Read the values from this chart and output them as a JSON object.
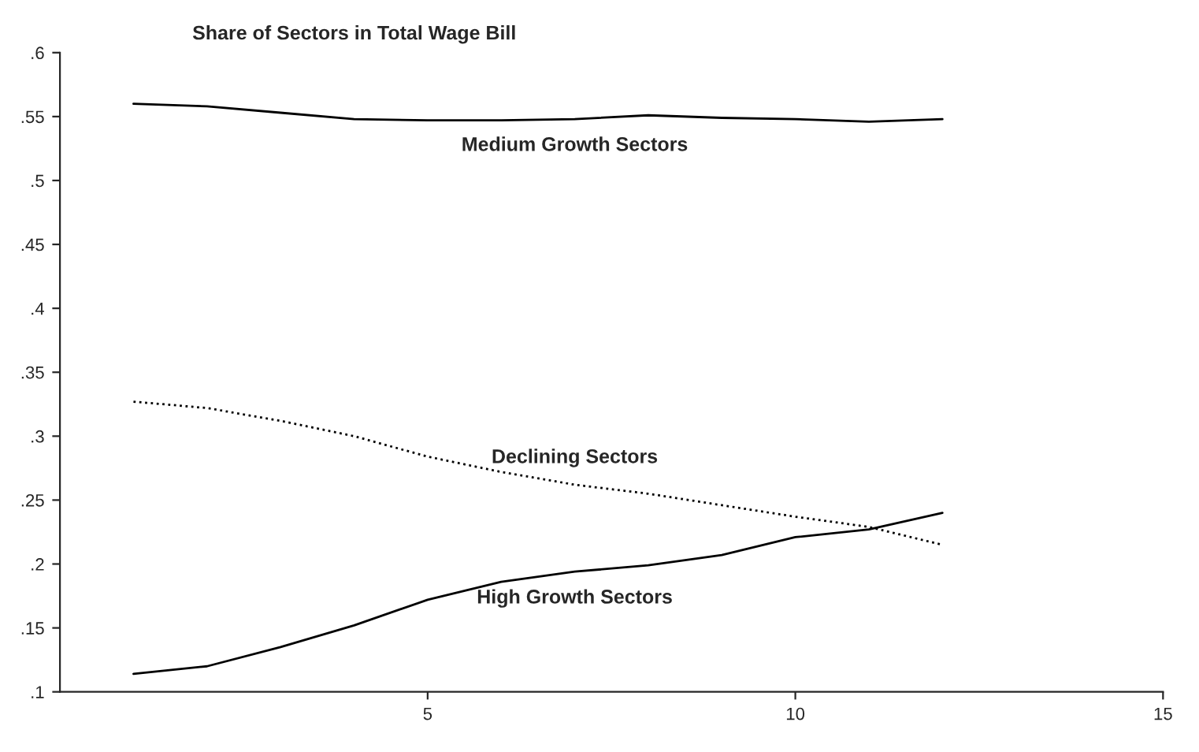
{
  "chart_data": {
    "type": "line",
    "title": "Share of Sectors in Total Wage Bill",
    "x": [
      1,
      2,
      3,
      4,
      5,
      6,
      7,
      8,
      9,
      10,
      11,
      12
    ],
    "series": [
      {
        "name": "Medium Growth Sectors",
        "color": "#000000",
        "line_style": "solid",
        "values": [
          0.56,
          0.558,
          0.553,
          0.548,
          0.547,
          0.547,
          0.548,
          0.551,
          0.549,
          0.548,
          0.546,
          0.548
        ]
      },
      {
        "name": "Declining Sectors",
        "color": "#000000",
        "line_style": "dotted",
        "values": [
          0.327,
          0.322,
          0.312,
          0.3,
          0.284,
          0.272,
          0.262,
          0.255,
          0.246,
          0.237,
          0.229,
          0.215
        ]
      },
      {
        "name": "High Growth Sectors",
        "color": "#000000",
        "line_style": "solid",
        "values": [
          0.114,
          0.12,
          0.135,
          0.152,
          0.172,
          0.186,
          0.194,
          0.199,
          0.207,
          0.221,
          0.227,
          0.24
        ]
      }
    ],
    "xlim": [
      0,
      15
    ],
    "xticks": [
      5,
      10,
      15
    ],
    "ylim": [
      0.1,
      0.6
    ],
    "yticks": [
      {
        "value": 0.1,
        "label": ".1"
      },
      {
        "value": 0.15,
        "label": ".15"
      },
      {
        "value": 0.2,
        "label": ".2"
      },
      {
        "value": 0.25,
        "label": ".25"
      },
      {
        "value": 0.3,
        "label": ".3"
      },
      {
        "value": 0.35,
        "label": ".35"
      },
      {
        "value": 0.4,
        "label": ".4"
      },
      {
        "value": 0.45,
        "label": ".45"
      },
      {
        "value": 0.5,
        "label": ".5"
      },
      {
        "value": 0.55,
        "label": ".55"
      },
      {
        "value": 0.6,
        "label": ".6"
      }
    ],
    "grid": false,
    "legend": false
  }
}
